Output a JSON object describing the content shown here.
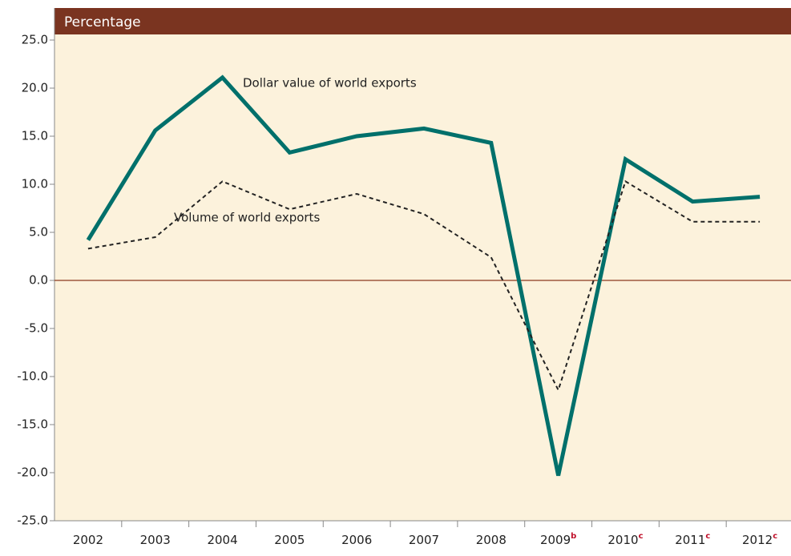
{
  "chart_data": {
    "type": "line",
    "header": "Percentage",
    "categories": [
      "2002",
      "2003",
      "2004",
      "2005",
      "2006",
      "2007",
      "2008",
      "2009",
      "2010",
      "2011",
      "2012"
    ],
    "category_notes": [
      null,
      null,
      null,
      null,
      null,
      null,
      null,
      "b",
      "c",
      "c",
      "c"
    ],
    "series": [
      {
        "name": "Dollar value of world exports",
        "color": "#00706b",
        "style": "solid",
        "values": [
          4.2,
          15.6,
          21.1,
          13.3,
          15.0,
          15.8,
          14.3,
          -20.3,
          12.6,
          8.2,
          8.7
        ]
      },
      {
        "name": "Volume of world exports",
        "color": "#222222",
        "style": "dashed",
        "values": [
          3.3,
          4.5,
          10.3,
          7.4,
          9.0,
          6.9,
          2.4,
          -11.4,
          10.3,
          6.1,
          6.1
        ]
      }
    ],
    "ylim": [
      -25,
      25
    ],
    "yticks": [
      {
        "value": -25,
        "label": "-25.0"
      },
      {
        "value": -20,
        "label": "-20.0"
      },
      {
        "value": -15,
        "label": "-15.0"
      },
      {
        "value": -10,
        "label": "-10.0"
      },
      {
        "value": -5,
        "label": "-5.0"
      },
      {
        "value": 0,
        "label": "0.0"
      },
      {
        "value": 5,
        "label": "5.0"
      },
      {
        "value": 10,
        "label": "10.0"
      },
      {
        "value": 15,
        "label": "15.0"
      },
      {
        "value": 20,
        "label": "20.0"
      },
      {
        "value": 25,
        "label": "25.0"
      }
    ],
    "zero_line_color": "#8b3a1e"
  }
}
